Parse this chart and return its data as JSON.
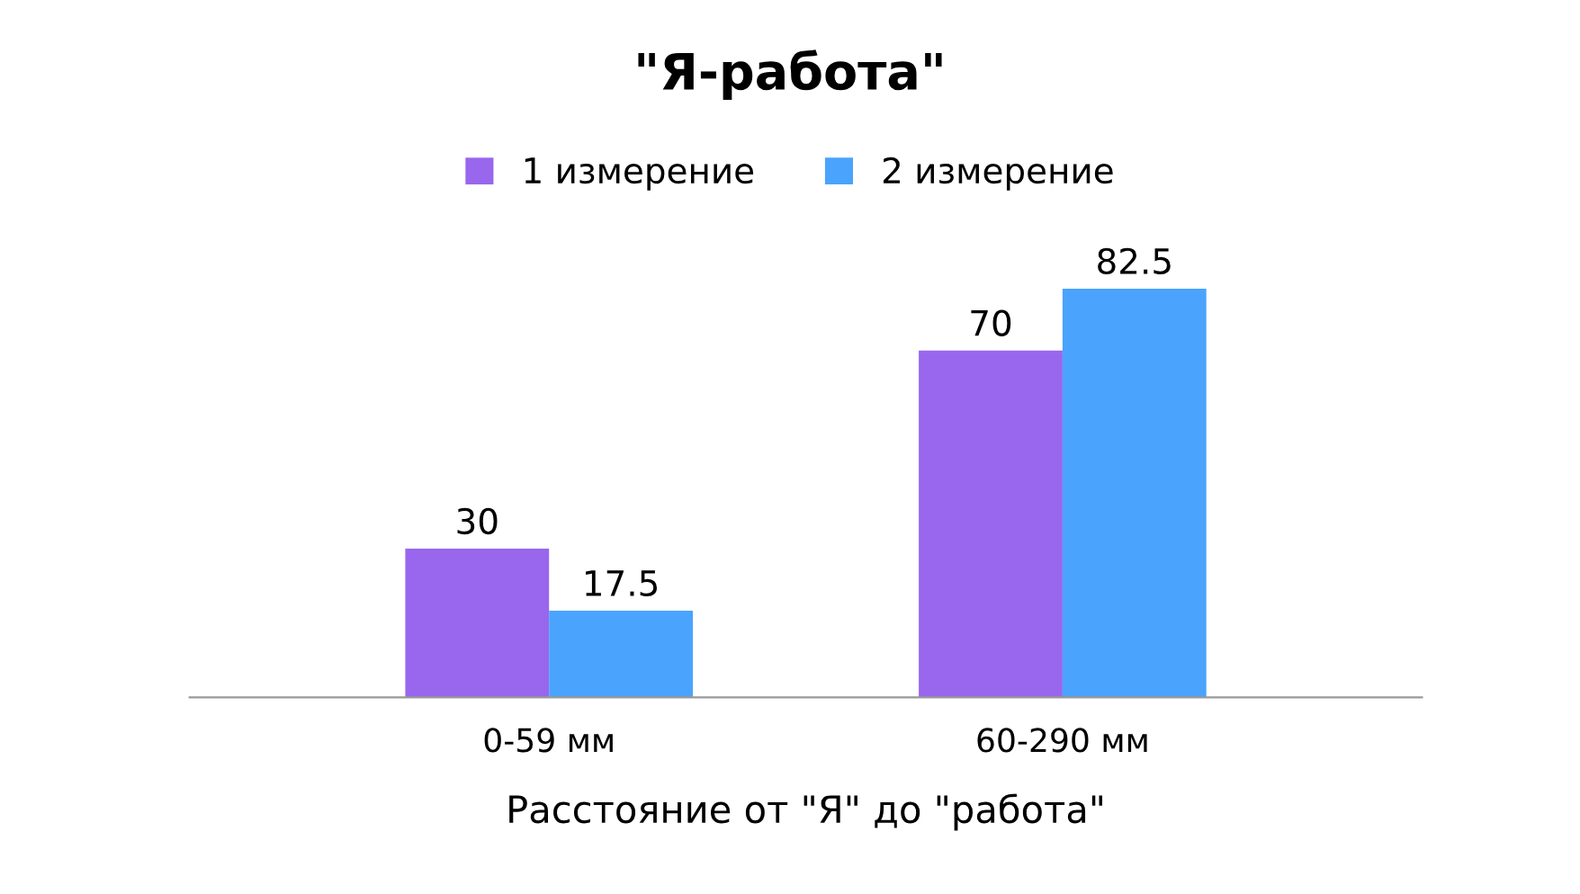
{
  "chart_data": {
    "type": "bar",
    "title": "\"Я-работа\"",
    "xlabel": "Расстояние от \"Я\" до \"работа\"",
    "categories": [
      "0-59 мм",
      "60-290 мм"
    ],
    "series": [
      {
        "name": "1 измерение",
        "color": "#9966ee",
        "values": [
          30,
          70
        ]
      },
      {
        "name": "2 измерение",
        "color": "#4aa3fc",
        "values": [
          17.5,
          82.5
        ]
      }
    ],
    "data_labels": true,
    "legend": "top",
    "grid": false
  }
}
